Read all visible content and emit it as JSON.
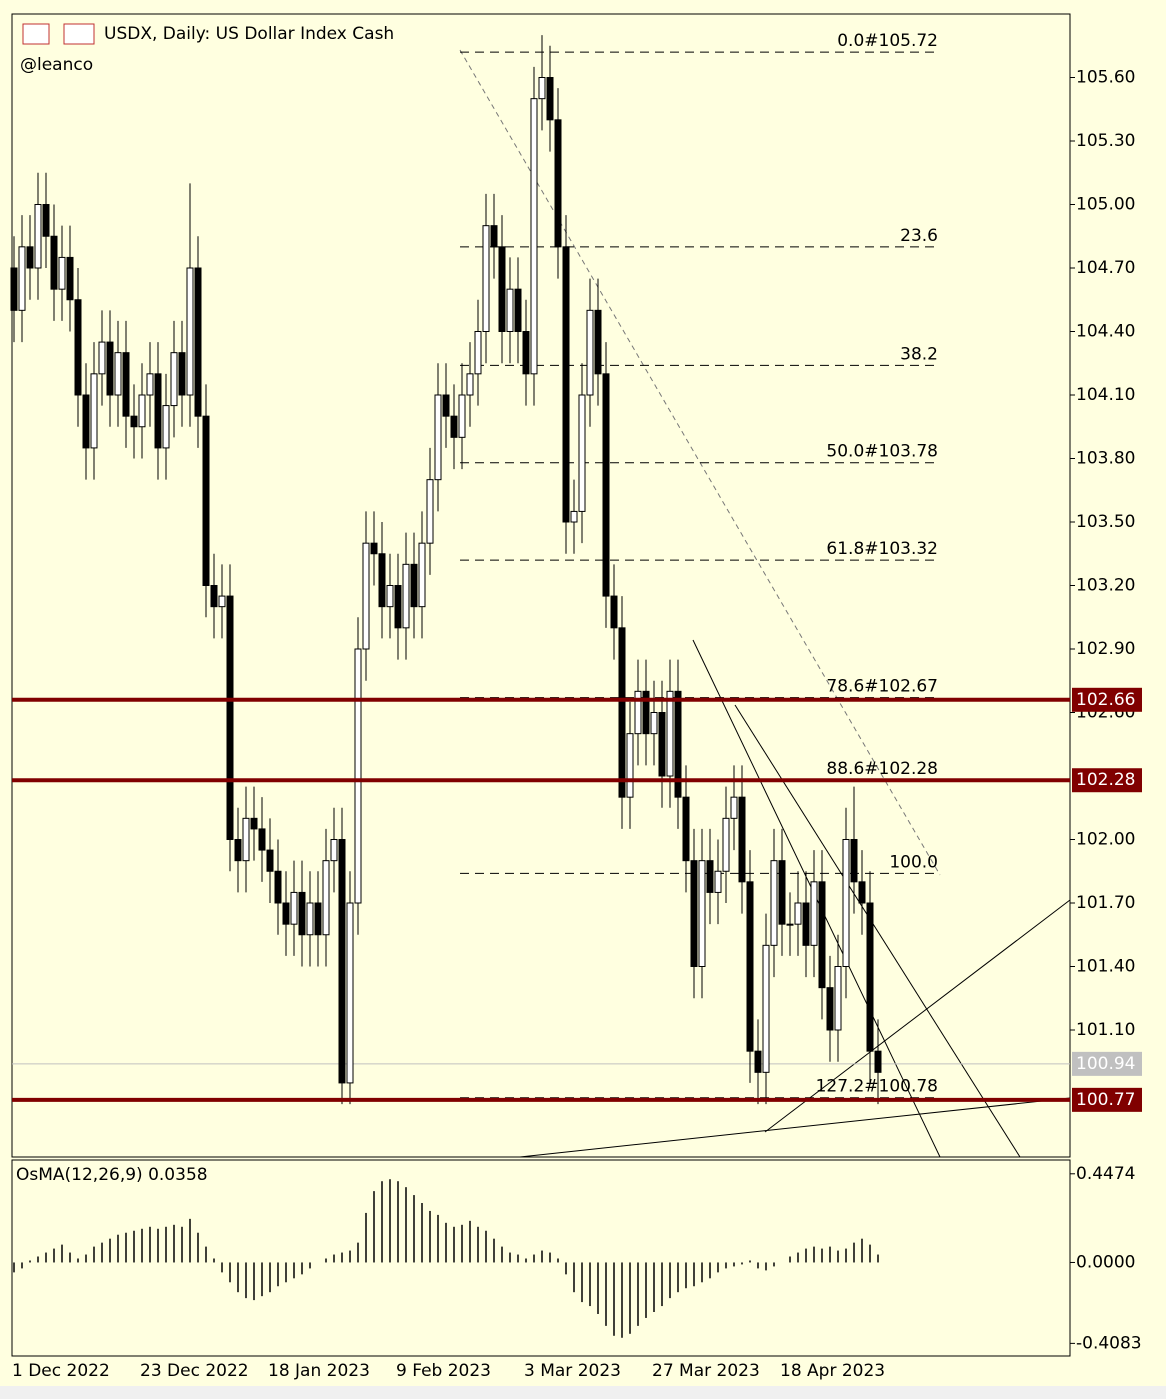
{
  "chart_data": [
    {
      "type": "candlestick",
      "title": "USDX, Daily:  US Dollar Index Cash",
      "subtitle": "@leanco",
      "categories": [
        "1 Dec 2022",
        null,
        null,
        null,
        null,
        null,
        null,
        null,
        null,
        null,
        null,
        null,
        null,
        null,
        null,
        null,
        "23 Dec 2022",
        null,
        null,
        null,
        null,
        null,
        null,
        null,
        null,
        null,
        null,
        null,
        null,
        null,
        null,
        null,
        "18 Jan 2023",
        null,
        null,
        null,
        null,
        null,
        null,
        null,
        null,
        null,
        null,
        null,
        null,
        null,
        null,
        null,
        "9 Feb 2023",
        null,
        null,
        null,
        null,
        null,
        null,
        null,
        null,
        null,
        null,
        null,
        null,
        null,
        null,
        null,
        "3 Mar 2023",
        null,
        null,
        null,
        null,
        null,
        null,
        null,
        null,
        null,
        null,
        null,
        null,
        null,
        null,
        null,
        "27 Mar 2023",
        null,
        null,
        null,
        null,
        null,
        null,
        null,
        null,
        null,
        null,
        null,
        null,
        null,
        null,
        null,
        "18 Apr 2023",
        null,
        null,
        null,
        null,
        null,
        null,
        null,
        null,
        null,
        null,
        null,
        null
      ],
      "open": [
        104.7,
        104.5,
        104.8,
        104.7,
        105.0,
        104.85,
        104.6,
        104.75,
        104.55,
        104.1,
        103.85,
        104.2,
        104.35,
        104.1,
        104.3,
        104.0,
        103.95,
        104.1,
        104.2,
        103.85,
        104.05,
        104.3,
        104.1,
        104.7,
        104.0,
        103.2,
        103.1,
        103.15,
        102.0,
        101.9,
        102.1,
        102.05,
        101.95,
        101.85,
        101.7,
        101.6,
        101.75,
        101.55,
        101.7,
        101.55,
        101.9,
        102.0,
        100.85,
        101.7,
        102.9,
        103.4,
        103.35,
        103.1,
        103.2,
        103.0,
        103.3,
        103.1,
        103.4,
        103.7,
        104.1,
        104.0,
        103.9,
        104.1,
        104.2,
        104.4,
        104.9,
        104.8,
        104.4,
        104.6,
        104.4,
        104.2,
        105.5,
        105.6,
        105.4,
        104.8,
        103.5,
        103.55,
        104.1,
        104.5,
        104.2,
        103.15,
        103.0,
        102.2,
        102.5,
        102.7,
        102.5,
        102.6,
        102.3,
        102.7,
        102.2,
        101.9,
        101.4,
        101.9,
        101.75,
        101.85,
        102.1,
        102.2,
        101.8,
        101.0,
        100.9,
        101.5,
        101.9,
        101.6,
        101.6,
        101.7,
        101.5,
        101.8,
        101.3,
        101.1,
        101.4,
        102.0,
        101.8,
        101.7,
        101.0
      ],
      "high": [
        104.85,
        104.95,
        104.95,
        105.15,
        105.15,
        105.0,
        104.9,
        104.9,
        104.7,
        104.25,
        104.35,
        104.5,
        104.5,
        104.45,
        104.45,
        104.15,
        104.25,
        104.35,
        104.35,
        104.2,
        104.45,
        104.45,
        105.1,
        104.85,
        104.15,
        103.35,
        103.3,
        103.3,
        102.15,
        102.25,
        102.25,
        102.2,
        102.1,
        102.0,
        101.85,
        101.9,
        101.9,
        101.85,
        101.85,
        102.05,
        102.15,
        102.15,
        101.85,
        103.05,
        103.55,
        103.55,
        103.5,
        103.35,
        103.35,
        103.45,
        103.45,
        103.55,
        103.85,
        104.25,
        104.25,
        104.15,
        104.25,
        104.35,
        104.55,
        105.05,
        105.05,
        104.95,
        104.75,
        104.75,
        104.55,
        105.65,
        105.8,
        105.75,
        105.55,
        104.95,
        103.7,
        104.25,
        104.65,
        104.65,
        104.35,
        103.3,
        103.15,
        102.65,
        102.85,
        102.85,
        102.75,
        102.75,
        102.85,
        102.85,
        102.35,
        102.05,
        102.05,
        102.05,
        102.0,
        102.25,
        102.35,
        102.35,
        101.95,
        101.15,
        101.65,
        102.05,
        102.05,
        101.75,
        101.85,
        101.85,
        101.95,
        101.95,
        101.45,
        101.55,
        102.15,
        102.25,
        101.95,
        101.85,
        101.15
      ],
      "low": [
        104.35,
        104.35,
        104.55,
        104.55,
        104.7,
        104.45,
        104.45,
        104.4,
        103.95,
        103.7,
        103.7,
        104.05,
        103.95,
        103.95,
        103.85,
        103.8,
        103.8,
        103.95,
        103.7,
        103.7,
        103.9,
        103.95,
        103.95,
        103.85,
        103.05,
        102.95,
        102.95,
        101.85,
        101.75,
        101.75,
        101.9,
        101.8,
        101.7,
        101.55,
        101.45,
        101.45,
        101.4,
        101.4,
        101.4,
        101.4,
        101.75,
        100.75,
        100.75,
        101.55,
        102.75,
        103.2,
        102.95,
        102.95,
        102.85,
        102.85,
        102.95,
        102.95,
        103.25,
        103.55,
        103.85,
        103.75,
        103.75,
        103.95,
        104.05,
        104.25,
        104.65,
        104.25,
        104.25,
        104.25,
        104.05,
        104.05,
        105.35,
        105.25,
        104.65,
        103.35,
        103.35,
        103.4,
        103.95,
        104.05,
        103.0,
        102.85,
        102.05,
        102.05,
        102.35,
        102.35,
        102.35,
        102.15,
        102.15,
        102.05,
        101.75,
        101.25,
        101.25,
        101.6,
        101.6,
        101.7,
        101.95,
        101.65,
        100.85,
        100.75,
        100.75,
        101.35,
        101.45,
        101.45,
        101.45,
        101.35,
        101.35,
        101.15,
        100.95,
        100.95,
        101.25,
        101.65,
        101.55,
        100.85,
        100.75
      ],
      "close": [
        104.5,
        104.8,
        104.7,
        105.0,
        104.85,
        104.6,
        104.75,
        104.55,
        104.1,
        103.85,
        104.2,
        104.35,
        104.1,
        104.3,
        104.0,
        103.95,
        104.1,
        104.2,
        103.85,
        104.05,
        104.3,
        104.1,
        104.7,
        104.0,
        103.2,
        103.1,
        103.15,
        102.0,
        101.9,
        102.1,
        102.05,
        101.95,
        101.85,
        101.7,
        101.6,
        101.75,
        101.55,
        101.7,
        101.55,
        101.9,
        102.0,
        100.85,
        101.7,
        102.9,
        103.4,
        103.35,
        103.1,
        103.2,
        103.0,
        103.3,
        103.1,
        103.4,
        103.7,
        104.1,
        104.0,
        103.9,
        104.1,
        104.2,
        104.4,
        104.9,
        104.8,
        104.4,
        104.6,
        104.4,
        104.2,
        105.5,
        105.6,
        105.4,
        104.8,
        103.5,
        103.55,
        104.1,
        104.5,
        104.2,
        103.15,
        103.0,
        102.2,
        102.5,
        102.7,
        102.5,
        102.6,
        102.3,
        102.7,
        102.2,
        101.9,
        101.4,
        101.9,
        101.75,
        101.85,
        102.1,
        102.2,
        101.8,
        101.0,
        100.9,
        101.5,
        101.9,
        101.6,
        101.6,
        101.7,
        101.5,
        101.8,
        101.3,
        101.1,
        101.4,
        102.0,
        101.8,
        101.7,
        101.0,
        100.9
      ],
      "ylim": [
        100.5,
        105.9
      ],
      "yticks": [
        {
          "value": 105.6,
          "label": "105.60"
        },
        {
          "value": 105.3,
          "label": "105.30"
        },
        {
          "value": 105.0,
          "label": "105.00"
        },
        {
          "value": 104.7,
          "label": "104.70"
        },
        {
          "value": 104.4,
          "label": "104.40"
        },
        {
          "value": 104.1,
          "label": "104.10"
        },
        {
          "value": 103.8,
          "label": "103.80"
        },
        {
          "value": 103.5,
          "label": "103.50"
        },
        {
          "value": 103.2,
          "label": "103.20"
        },
        {
          "value": 102.9,
          "label": "102.90"
        },
        {
          "value": 102.6,
          "label": "102.60"
        },
        {
          "value": 102.0,
          "label": "102.00"
        },
        {
          "value": 101.7,
          "label": "101.70"
        },
        {
          "value": 101.4,
          "label": "101.40"
        },
        {
          "value": 101.1,
          "label": "101.10"
        }
      ],
      "levels": [
        102.66,
        102.28,
        100.77
      ],
      "level_color": "#800000",
      "last_price": 100.94,
      "fibonacci": [
        {
          "label": "0.0#105.72",
          "value": 105.72
        },
        {
          "label": "23.6",
          "value": 104.8
        },
        {
          "label": "38.2",
          "value": 104.24
        },
        {
          "label": "50.0#103.78",
          "value": 103.78
        },
        {
          "label": "61.8#103.32",
          "value": 103.32
        },
        {
          "label": "78.6#102.67",
          "value": 102.67
        },
        {
          "label": "88.6#102.28",
          "value": 102.28
        },
        {
          "label": "100.0",
          "value": 101.84
        },
        {
          "label": "127.2#100.78",
          "value": 100.78
        }
      ]
    },
    {
      "type": "bar",
      "title": "OsMA(12,26,9) 0.0358",
      "values": [
        -0.05,
        -0.03,
        0.01,
        0.03,
        0.05,
        0.07,
        0.09,
        0.05,
        0.02,
        0.04,
        0.08,
        0.1,
        0.12,
        0.14,
        0.15,
        0.16,
        0.17,
        0.18,
        0.17,
        0.18,
        0.19,
        0.18,
        0.22,
        0.15,
        0.08,
        0.02,
        -0.05,
        -0.1,
        -0.15,
        -0.18,
        -0.19,
        -0.17,
        -0.15,
        -0.12,
        -0.1,
        -0.08,
        -0.06,
        -0.03,
        0.0,
        0.02,
        0.04,
        0.05,
        0.06,
        0.1,
        0.25,
        0.36,
        0.41,
        0.42,
        0.41,
        0.38,
        0.34,
        0.3,
        0.26,
        0.24,
        0.2,
        0.18,
        0.19,
        0.21,
        0.18,
        0.16,
        0.12,
        0.08,
        0.05,
        0.04,
        0.02,
        0.04,
        0.06,
        0.05,
        0.02,
        -0.06,
        -0.15,
        -0.2,
        -0.22,
        -0.26,
        -0.32,
        -0.37,
        -0.38,
        -0.36,
        -0.32,
        -0.28,
        -0.25,
        -0.22,
        -0.18,
        -0.15,
        -0.13,
        -0.12,
        -0.1,
        -0.08,
        -0.05,
        -0.03,
        -0.02,
        -0.01,
        0.01,
        -0.03,
        -0.04,
        -0.02,
        0.0,
        0.03,
        0.05,
        0.07,
        0.08,
        0.07,
        0.08,
        0.06,
        0.07,
        0.1,
        0.12,
        0.09,
        0.04
      ],
      "ylim": [
        -0.472,
        0.517
      ],
      "yticks": [
        0.4474,
        {
          "value": 0,
          "label": "0.0000"
        },
        -0.4083
      ]
    }
  ]
}
